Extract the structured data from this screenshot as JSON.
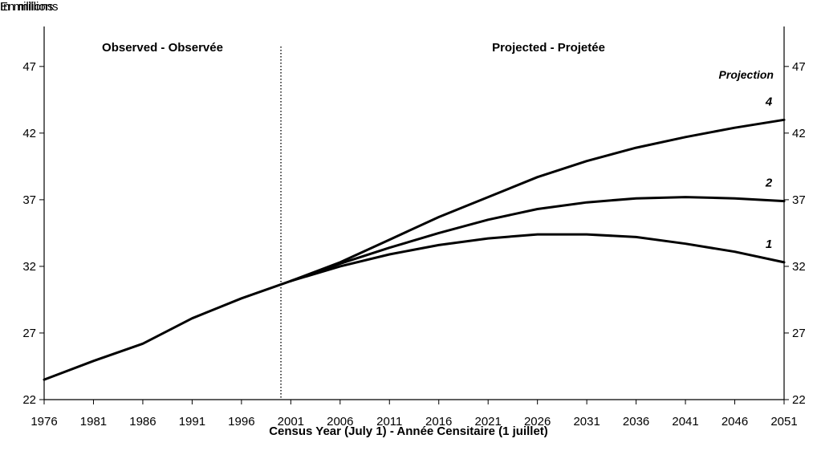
{
  "chart_data": {
    "type": "line",
    "left_unit_label": "In millions",
    "right_unit_label": "En millions",
    "xlabel": "Census Year (July 1) - Année Censitaire (1 juillet)",
    "x_ticks": [
      "1976",
      "1981",
      "1986",
      "1991",
      "1996",
      "2001",
      "2006",
      "2011",
      "2016",
      "2021",
      "2026",
      "2031",
      "2036",
      "2041",
      "2046",
      "2051"
    ],
    "y_ticks": [
      "22",
      "27",
      "32",
      "37",
      "42",
      "47"
    ],
    "xlim": [
      1976,
      2051
    ],
    "ylim": [
      22,
      50
    ],
    "grid": false,
    "region_labels": {
      "observed": "Observed - Observée",
      "projected": "Projected - Projetée"
    },
    "divider_x": 2000,
    "projection_heading": "Projection",
    "series": [
      {
        "name": "",
        "x": [
          1976,
          1981,
          1986,
          1991,
          1996,
          2001
        ],
        "y": [
          23.5,
          24.9,
          26.2,
          28.1,
          29.6,
          30.9
        ]
      },
      {
        "name": "1",
        "x": [
          2001,
          2006,
          2011,
          2016,
          2021,
          2026,
          2031,
          2036,
          2041,
          2046,
          2051
        ],
        "y": [
          30.9,
          32.0,
          32.9,
          33.6,
          34.1,
          34.4,
          34.4,
          34.2,
          33.7,
          33.1,
          32.3
        ]
      },
      {
        "name": "2",
        "x": [
          2001,
          2006,
          2011,
          2016,
          2021,
          2026,
          2031,
          2036,
          2041,
          2046,
          2051
        ],
        "y": [
          30.9,
          32.2,
          33.4,
          34.5,
          35.5,
          36.3,
          36.8,
          37.1,
          37.2,
          37.1,
          36.9
        ]
      },
      {
        "name": "4",
        "x": [
          2001,
          2006,
          2011,
          2016,
          2021,
          2026,
          2031,
          2036,
          2041,
          2046,
          2051
        ],
        "y": [
          30.9,
          32.3,
          34.0,
          35.7,
          37.2,
          38.7,
          39.9,
          40.9,
          41.7,
          42.4,
          43.0
        ]
      }
    ]
  }
}
